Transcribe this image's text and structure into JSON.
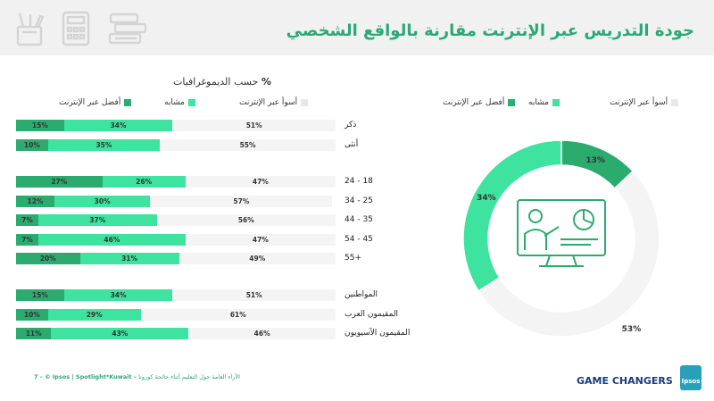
{
  "header": {
    "title": "جودة التدريس عبر الإنترنت مقارنة بالواقع الشخصي",
    "icons": [
      "pencil-cup-icon",
      "calculator-icon",
      "books-stack-icon"
    ]
  },
  "demographics": {
    "subtitle_prefix": "%",
    "subtitle_text": "حسب الديموغرافيات",
    "legend": {
      "worse": "أسوأ عبر الإنترنت",
      "similar": "مشابه",
      "better": "أفضل عبر الإنترنت"
    }
  },
  "donut_legend": {
    "worse": "أسوأ عبر الإنترنت",
    "similar": "مشابه",
    "better": "أفضل عبر الإنترنت"
  },
  "colors": {
    "worse": "#f4f4f4",
    "similar": "#3de39e",
    "better": "#2cab6f",
    "title": "#2aa877"
  },
  "chart_data": [
    {
      "type": "bar",
      "orientation": "horizontal",
      "stacked": true,
      "series_order": [
        "better",
        "similar",
        "worse"
      ],
      "series_names": [
        "أفضل عبر الإنترنت",
        "مشابه",
        "أسوأ عبر الإنترنت"
      ],
      "groups": [
        {
          "rows": [
            {
              "label": "ذكر",
              "better": 15,
              "similar": 34,
              "worse": 51
            },
            {
              "label": "أنثى",
              "better": 10,
              "similar": 35,
              "worse": 55
            }
          ]
        },
        {
          "rows": [
            {
              "label": "18 - 24",
              "better": 27,
              "similar": 26,
              "worse": 47
            },
            {
              "label": "25 - 34",
              "better": 12,
              "similar": 30,
              "worse": 57
            },
            {
              "label": "35 - 44",
              "better": 7,
              "similar": 37,
              "worse": 56
            },
            {
              "label": "45 - 54",
              "better": 7,
              "similar": 46,
              "worse": 47
            },
            {
              "label": "+55",
              "better": 20,
              "similar": 31,
              "worse": 49
            }
          ]
        },
        {
          "rows": [
            {
              "label": "المواطنين",
              "better": 15,
              "similar": 34,
              "worse": 51
            },
            {
              "label": "المقيمون العرب",
              "better": 10,
              "similar": 29,
              "worse": 61
            },
            {
              "label": "المقيمون الآسيويون",
              "better": 11,
              "similar": 43,
              "worse": 46
            }
          ]
        }
      ],
      "xlim": [
        0,
        100
      ]
    },
    {
      "type": "pie",
      "donut": true,
      "slices": [
        {
          "key": "better",
          "name": "أفضل عبر الإنترنت",
          "value": 13,
          "label": "13%"
        },
        {
          "key": "worse",
          "name": "أسوأ عبر الإنترنت",
          "value": 53,
          "label": "53%"
        },
        {
          "key": "similar",
          "name": "مشابه",
          "value": 34,
          "label": "34%"
        }
      ],
      "center_icon": "online-teacher-screen-icon"
    }
  ],
  "footer": {
    "page": "7",
    "brand": "– © Ipsos | Spotlight*Kuwait –",
    "note": "الآراء العامة حول التعليم أثناء جائحة كورونا",
    "game_changers": "GAME CHANGERS",
    "ipsos_logo": "Ipsos"
  }
}
